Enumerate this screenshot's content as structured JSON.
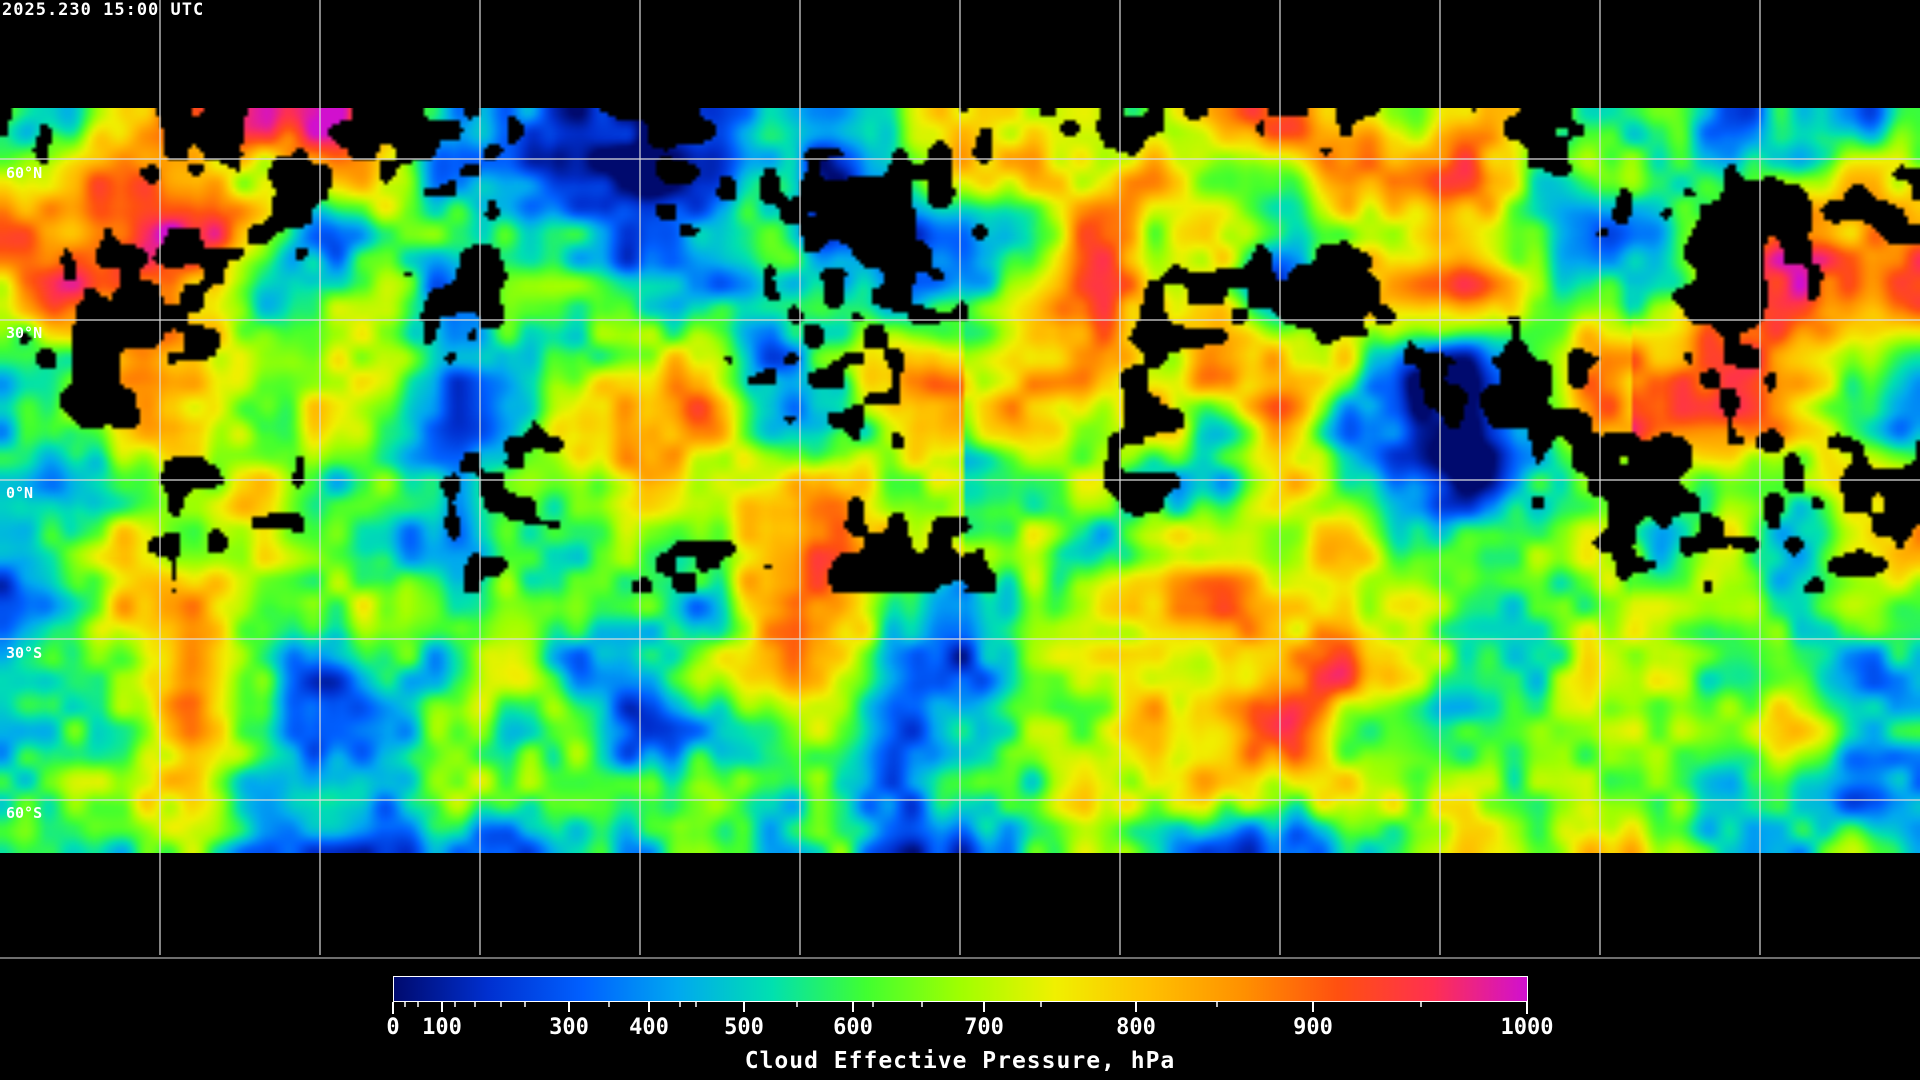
{
  "timestamp": "2025.230 15:00 UTC",
  "latitude_labels": [
    "60°N",
    "30°N",
    "0°N",
    "30°S",
    "60°S"
  ],
  "colorbar": {
    "title": "Cloud Effective Pressure, hPa",
    "range": [
      0,
      1000
    ],
    "tick_labels": [
      "0",
      "100",
      "300",
      "400",
      "500",
      "600",
      "700",
      "800",
      "900",
      "1000"
    ],
    "colors": [
      "#000a6e",
      "#0030d0",
      "#0060ff",
      "#00a8f0",
      "#00e0b0",
      "#40ff30",
      "#a0ff00",
      "#f0f000",
      "#ffc000",
      "#ff9000",
      "#ff5010",
      "#ff3050",
      "#d010d0"
    ]
  },
  "map": {
    "grid_spacing_deg": 30,
    "coastline_color": "#ffffff",
    "no_data_color": "#000000"
  }
}
